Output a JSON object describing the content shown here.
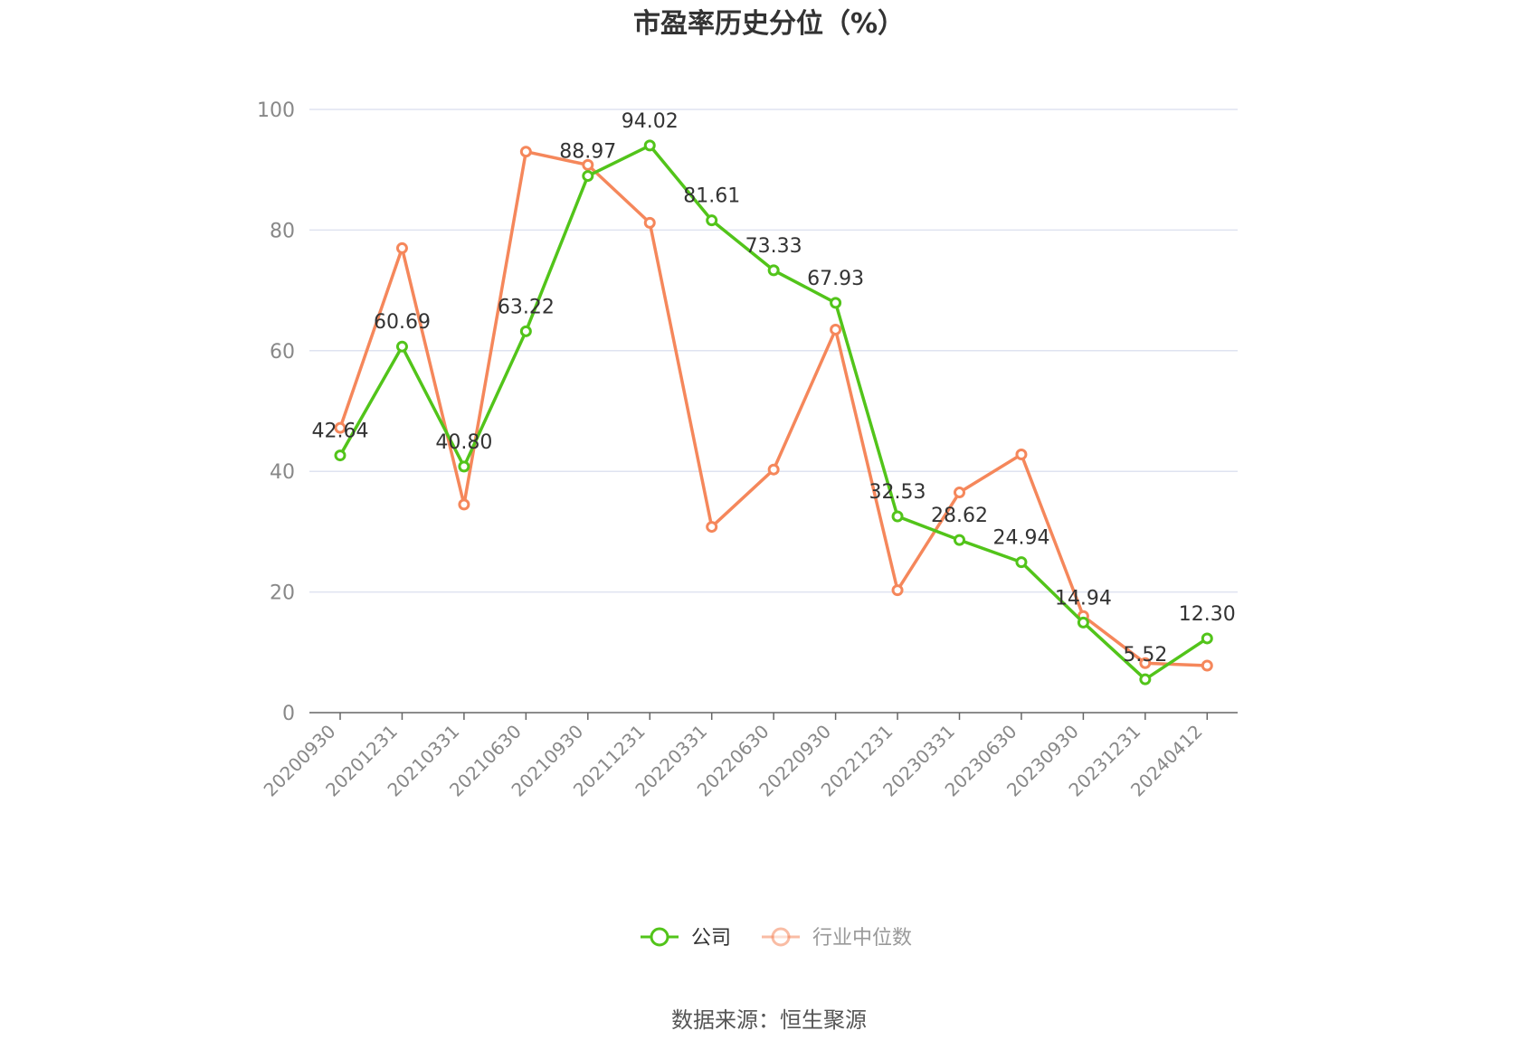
{
  "chart_data": {
    "type": "line",
    "title": "市盈率历史分位（%）",
    "categories": [
      "20200930",
      "20201231",
      "20210331",
      "20210630",
      "20210930",
      "20211231",
      "20220331",
      "20220630",
      "20220930",
      "20221231",
      "20230331",
      "20230630",
      "20230930",
      "20231231",
      "20240412"
    ],
    "series": [
      {
        "name": "公司",
        "color": "#52c41a",
        "values": [
          42.64,
          60.69,
          40.8,
          63.22,
          88.97,
          94.02,
          81.61,
          73.33,
          67.93,
          32.53,
          28.62,
          24.94,
          14.94,
          5.52,
          12.3
        ],
        "labels": [
          "42.64",
          "60.69",
          "40.80",
          "63.22",
          "88.97",
          "94.02",
          "81.61",
          "73.33",
          "67.93",
          "32.53",
          "28.62",
          "24.94",
          "14.94",
          "5.52",
          "12.30"
        ]
      },
      {
        "name": "行业中位数",
        "color": "#f5875b",
        "values": [
          47.2,
          77.0,
          34.5,
          93.0,
          90.8,
          81.2,
          30.8,
          40.3,
          63.5,
          20.3,
          36.5,
          42.8,
          16.0,
          8.2,
          7.8
        ]
      }
    ],
    "ylim": [
      0,
      100
    ],
    "yticks": [
      0,
      20,
      40,
      60,
      80,
      100
    ],
    "grid": true,
    "legend_position": "bottom"
  },
  "source_text": "数据来源：恒生聚源",
  "colors": {
    "grid": "#dfe3f0",
    "axis": "#666666",
    "legend_inactive_text": "#999999"
  }
}
